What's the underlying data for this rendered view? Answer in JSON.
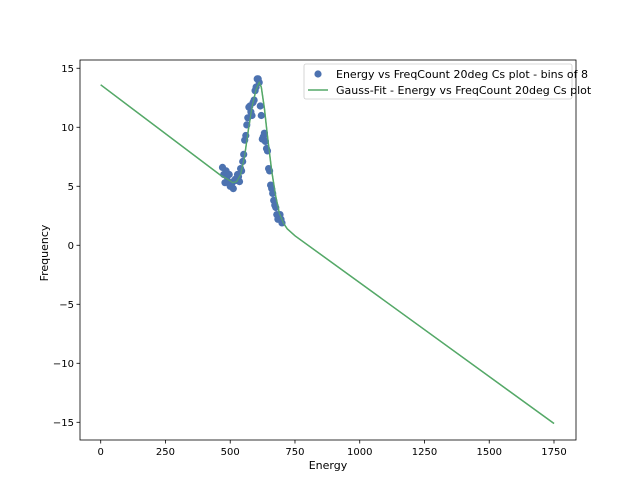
{
  "chart_data": {
    "type": "scatter",
    "title": "",
    "xlabel": "Energy",
    "ylabel": "Frequency",
    "xlim": [
      -80,
      1835
    ],
    "ylim": [
      -16.5,
      15.7
    ],
    "xticks": [
      0,
      250,
      500,
      750,
      1000,
      1250,
      1500,
      1750
    ],
    "xtick_labels": [
      "0",
      "250",
      "500",
      "750",
      "1000",
      "1250",
      "1500",
      "1750"
    ],
    "yticks": [
      -15,
      -10,
      -5,
      0,
      5,
      10,
      15
    ],
    "ytick_labels": [
      "−15",
      "−10",
      "−5",
      "0",
      "5",
      "10",
      "15"
    ],
    "grid": false,
    "legend_position": "top-right",
    "series": [
      {
        "name": "Energy vs FreqCount 20deg Cs plot - bins of 8",
        "kind": "scatter",
        "color": "#4c72b0",
        "points": [
          [
            470,
            6.6
          ],
          [
            475,
            6.0
          ],
          [
            480,
            5.3
          ],
          [
            484,
            6.3
          ],
          [
            488,
            5.8
          ],
          [
            492,
            5.4
          ],
          [
            496,
            6.0
          ],
          [
            500,
            5.0
          ],
          [
            504,
            5.2
          ],
          [
            508,
            5.3
          ],
          [
            512,
            4.8
          ],
          [
            516,
            5.5
          ],
          [
            520,
            5.6
          ],
          [
            524,
            5.5
          ],
          [
            528,
            6.0
          ],
          [
            532,
            5.8
          ],
          [
            536,
            5.4
          ],
          [
            540,
            6.5
          ],
          [
            544,
            6.3
          ],
          [
            548,
            7.1
          ],
          [
            552,
            7.7
          ],
          [
            556,
            8.9
          ],
          [
            560,
            9.3
          ],
          [
            564,
            10.2
          ],
          [
            568,
            10.8
          ],
          [
            572,
            11.7
          ],
          [
            576,
            11.8
          ],
          [
            580,
            11.3
          ],
          [
            584,
            11.0
          ],
          [
            588,
            12.1
          ],
          [
            592,
            12.3
          ],
          [
            596,
            13.1
          ],
          [
            600,
            13.4
          ],
          [
            604,
            14.1
          ],
          [
            608,
            14.1
          ],
          [
            612,
            13.8
          ],
          [
            616,
            11.8
          ],
          [
            620,
            11.0
          ],
          [
            624,
            9.0
          ],
          [
            628,
            9.2
          ],
          [
            632,
            9.5
          ],
          [
            636,
            8.8
          ],
          [
            640,
            8.2
          ],
          [
            644,
            8.0
          ],
          [
            648,
            6.5
          ],
          [
            652,
            6.3
          ],
          [
            656,
            5.1
          ],
          [
            660,
            4.8
          ],
          [
            664,
            4.4
          ],
          [
            668,
            3.8
          ],
          [
            672,
            3.4
          ],
          [
            676,
            3.2
          ],
          [
            680,
            2.6
          ],
          [
            684,
            2.2
          ],
          [
            688,
            2.4
          ],
          [
            692,
            2.6
          ],
          [
            696,
            2.2
          ],
          [
            700,
            1.9
          ]
        ]
      },
      {
        "name": "Gauss-Fit - Energy vs FreqCount 20deg Cs plot",
        "kind": "line",
        "color": "#55a868",
        "points": [
          [
            0,
            13.6
          ],
          [
            465,
            5.9
          ],
          [
            490,
            5.6
          ],
          [
            510,
            5.3
          ],
          [
            525,
            5.4
          ],
          [
            540,
            6.0
          ],
          [
            555,
            7.5
          ],
          [
            570,
            9.8
          ],
          [
            585,
            11.8
          ],
          [
            600,
            13.2
          ],
          [
            612,
            13.8
          ],
          [
            620,
            13.4
          ],
          [
            632,
            11.6
          ],
          [
            645,
            9.0
          ],
          [
            660,
            6.3
          ],
          [
            675,
            4.2
          ],
          [
            690,
            2.7
          ],
          [
            705,
            1.9
          ],
          [
            720,
            1.4
          ],
          [
            750,
            0.8
          ],
          [
            1750,
            -15.1
          ]
        ]
      }
    ]
  }
}
